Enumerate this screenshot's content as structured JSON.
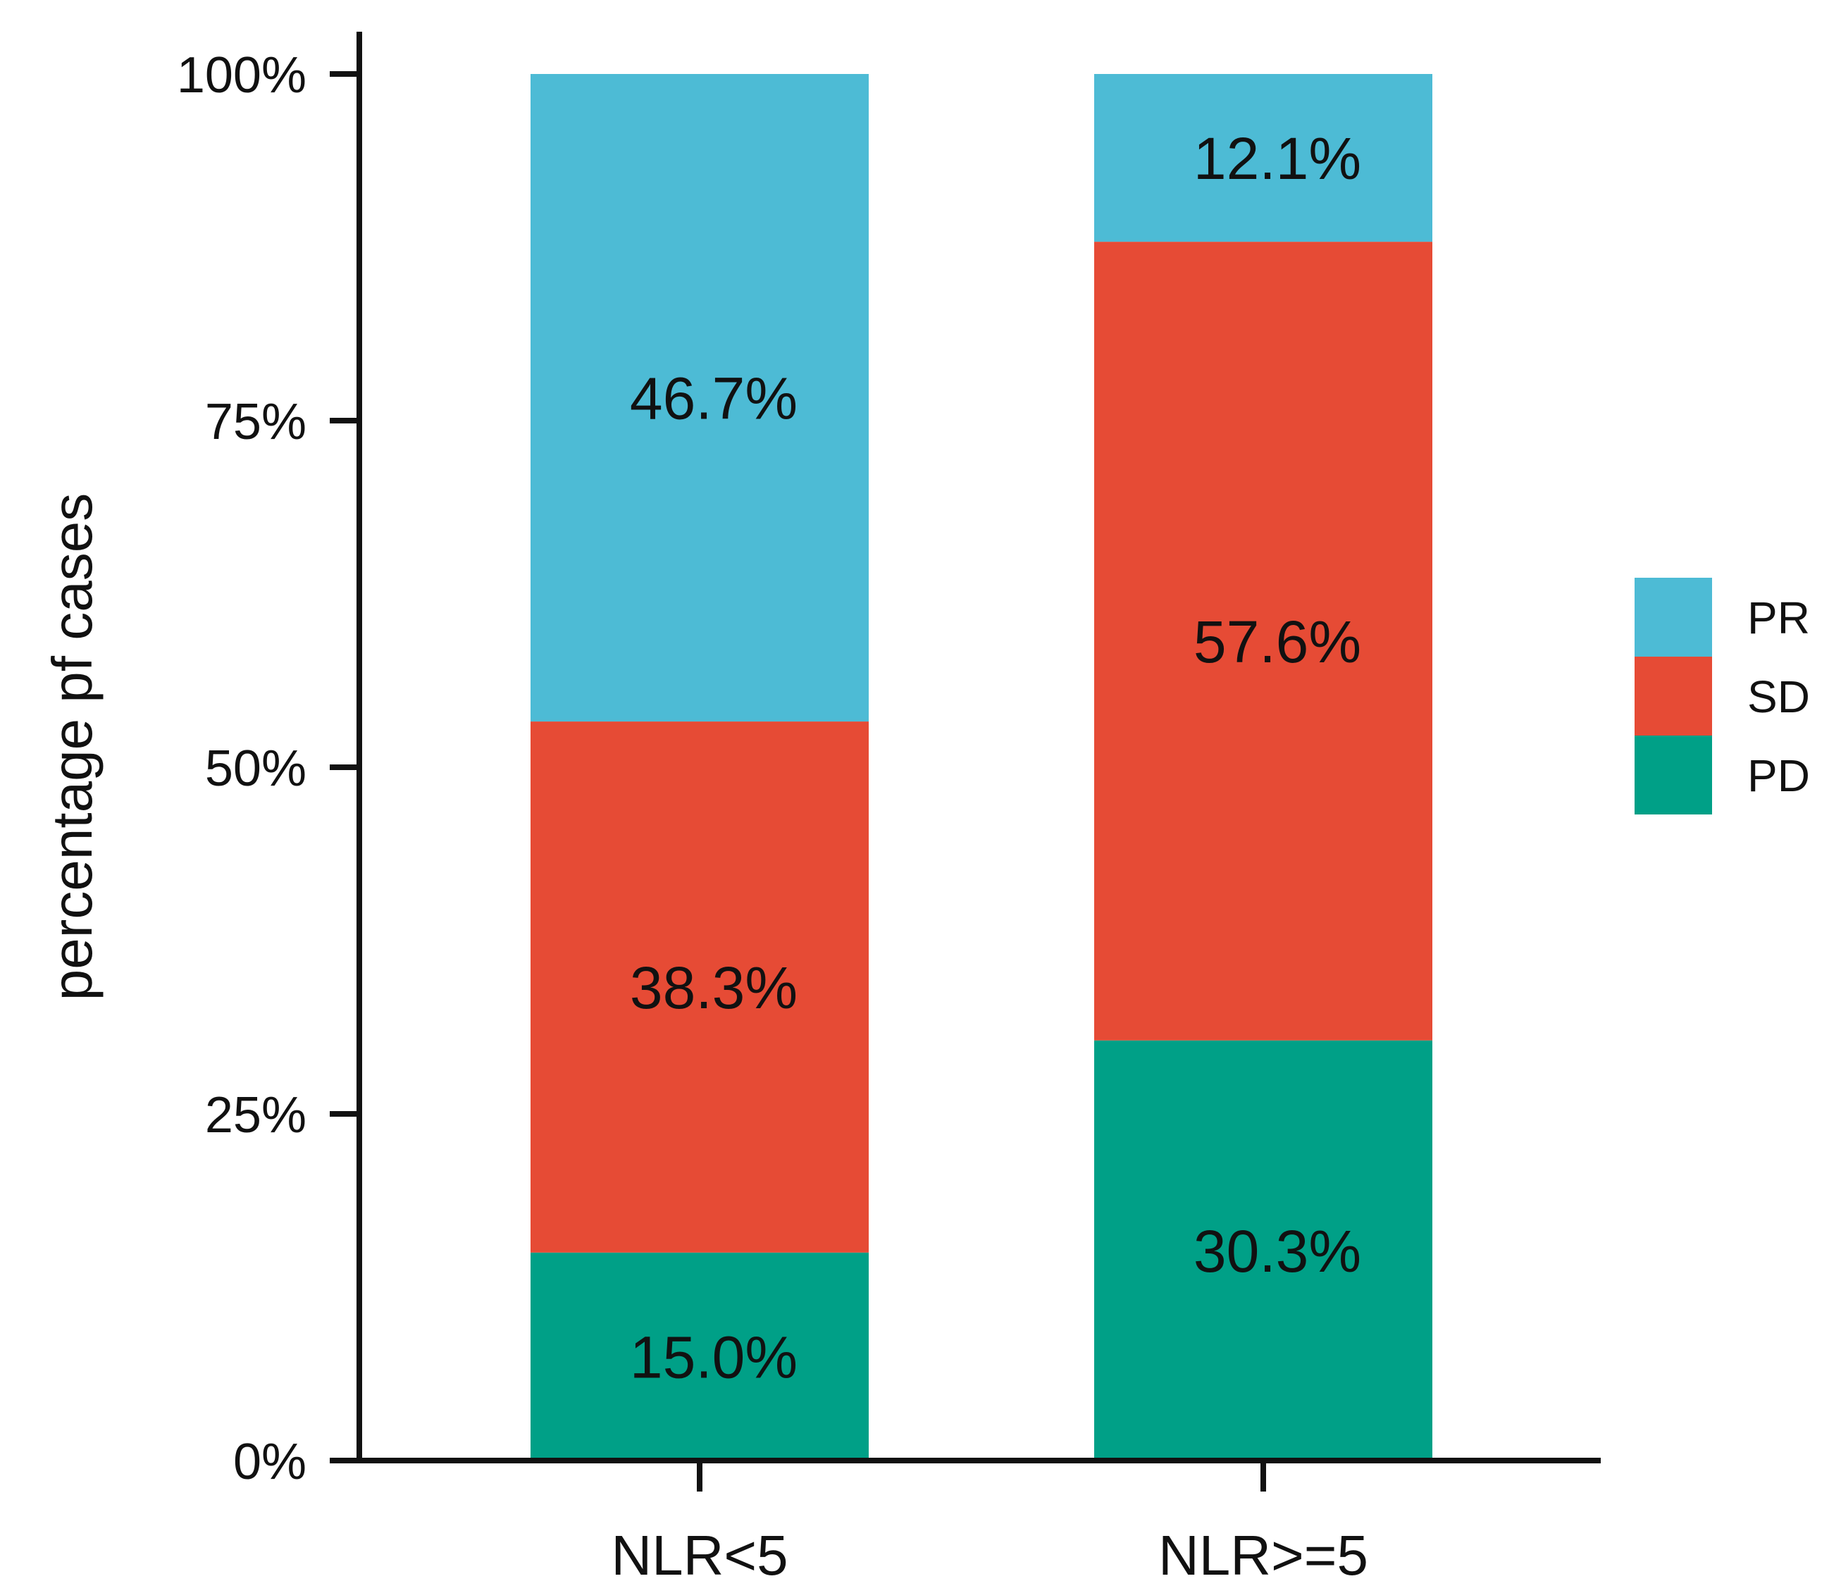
{
  "chart_data": {
    "type": "bar",
    "stacked": true,
    "title": "",
    "xlabel": "",
    "ylabel": "percentage pf cases",
    "ylim": [
      0,
      100
    ],
    "yticks": [
      "0%",
      "25%",
      "50%",
      "75%",
      "100%"
    ],
    "ytick_values": [
      0,
      25,
      50,
      75,
      100
    ],
    "categories": [
      "NLR<5",
      "NLR>=5"
    ],
    "series": [
      {
        "name": "PD",
        "color": "#00A087",
        "values": [
          15.0,
          30.3
        ],
        "labels": [
          "15.0%",
          "30.3%"
        ]
      },
      {
        "name": "SD",
        "color": "#E64B35",
        "values": [
          38.3,
          57.6
        ],
        "labels": [
          "38.3%",
          "57.6%"
        ]
      },
      {
        "name": "PR",
        "color": "#4DBBD5",
        "values": [
          46.7,
          12.1
        ],
        "labels": [
          "46.7%",
          "12.1%"
        ]
      }
    ],
    "legend": {
      "position": "right",
      "order": [
        "PR",
        "SD",
        "PD"
      ]
    },
    "grid": false
  }
}
